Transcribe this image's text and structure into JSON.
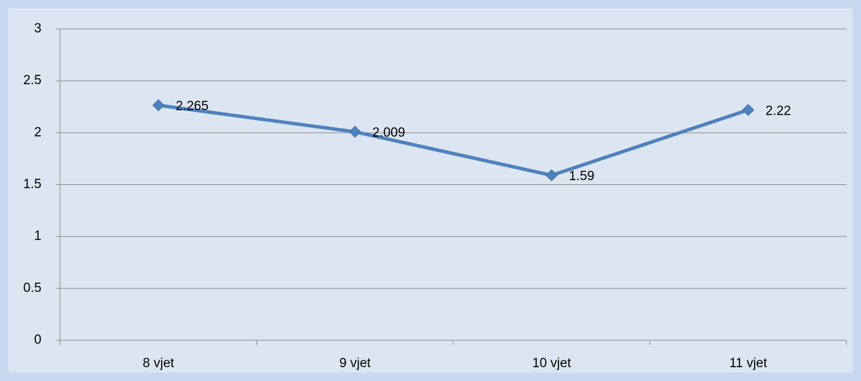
{
  "chart_data": {
    "type": "line",
    "categories": [
      "8 vjet",
      "9 vjet",
      "10 vjet",
      "11 vjet"
    ],
    "values": [
      2.265,
      2.009,
      1.59,
      2.22
    ],
    "color": "#4f81bd",
    "ylim": [
      0,
      3
    ],
    "yticks": [
      0,
      0.5,
      1,
      1.5,
      2,
      2.5,
      3
    ],
    "grid": true
  }
}
